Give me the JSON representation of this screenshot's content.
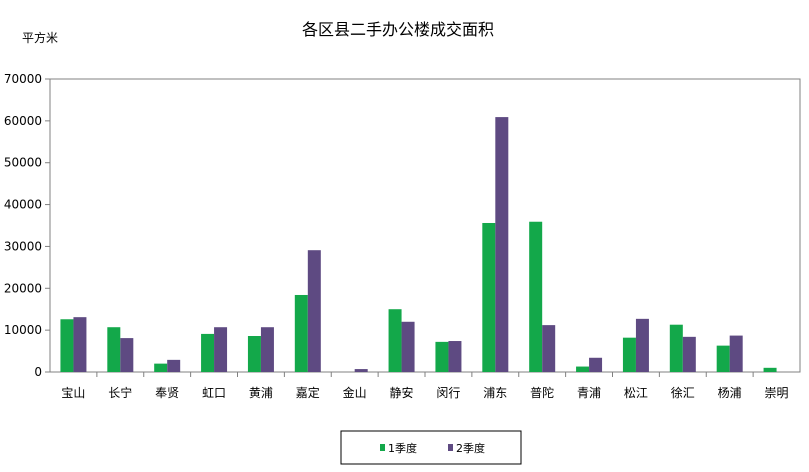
{
  "chart_data": {
    "type": "bar",
    "title": "各区县二手办公楼成交面积",
    "ylabel": "平方米",
    "xlabel": "",
    "ylim": [
      0,
      70000
    ],
    "yticks": [
      0,
      10000,
      20000,
      30000,
      40000,
      50000,
      60000,
      70000
    ],
    "grid": false,
    "legend_position": "bottom",
    "categories": [
      "宝山",
      "长宁",
      "奉贤",
      "虹口",
      "黄浦",
      "嘉定",
      "金山",
      "静安",
      "闵行",
      "浦东",
      "普陀",
      "青浦",
      "松江",
      "徐汇",
      "杨浦",
      "崇明"
    ],
    "series": [
      {
        "name": "1季度",
        "color": "#13a84a",
        "values": [
          12600,
          10700,
          2000,
          9100,
          8600,
          18400,
          0,
          15000,
          7200,
          35600,
          35900,
          1300,
          8200,
          11300,
          6300,
          1000
        ]
      },
      {
        "name": "2季度",
        "color": "#5e4a82",
        "values": [
          13100,
          8100,
          2900,
          10700,
          10700,
          29100,
          700,
          12000,
          7400,
          60900,
          11200,
          3400,
          12700,
          8400,
          8700,
          0
        ]
      }
    ]
  }
}
